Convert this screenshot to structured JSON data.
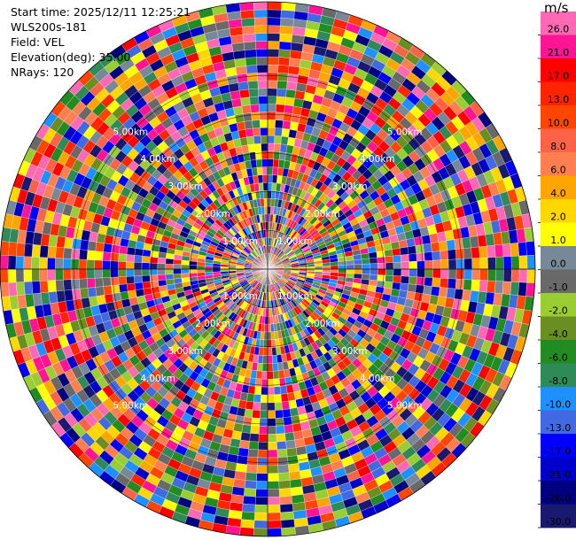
{
  "header": {
    "start_time": "Start time: 2025/12/11 12:25:21",
    "instrument": "WLS200s-181",
    "field": "Field: VEL",
    "elevation": "Elevation(deg): 35.00",
    "nrays": "NRays: 120"
  },
  "chart_data": {
    "type": "heatmap",
    "projection": "polar-ppi",
    "field": "VEL",
    "units": "m/s",
    "elevation_deg": 35.0,
    "n_rays": 120,
    "range_rings_km": [
      1.0,
      2.0,
      3.0,
      4.0,
      5.0
    ],
    "range_ring_labels": [
      "1.00km",
      "2.00km",
      "3.00km",
      "4.00km",
      "5.00km"
    ],
    "max_range_km": 6.9,
    "colorbar": {
      "label": "m/s",
      "ticks": [
        "26.0",
        "21.0",
        "17.0",
        "13.0",
        "10.0",
        "8.0",
        "6.0",
        "4.0",
        "2.0",
        "1.0",
        "0.0",
        "-1.0",
        "-2.0",
        "-4.0",
        "-6.0",
        "-8.0",
        "-10.0",
        "-13.0",
        "-17.0",
        "-21.0",
        "-26.0",
        "-30.0"
      ],
      "colors": [
        "#ff69b4",
        "#ff1493",
        "#ff0000",
        "#ff2400",
        "#ff4500",
        "#ff6347",
        "#ff7f50",
        "#ffa500",
        "#ffd700",
        "#ffff00",
        "#778899",
        "#696969",
        "#9acd32",
        "#6b8e23",
        "#228b22",
        "#2e8b57",
        "#1e90ff",
        "#4169e1",
        "#0000ff",
        "#0000cd",
        "#000080",
        "#191970"
      ]
    }
  }
}
